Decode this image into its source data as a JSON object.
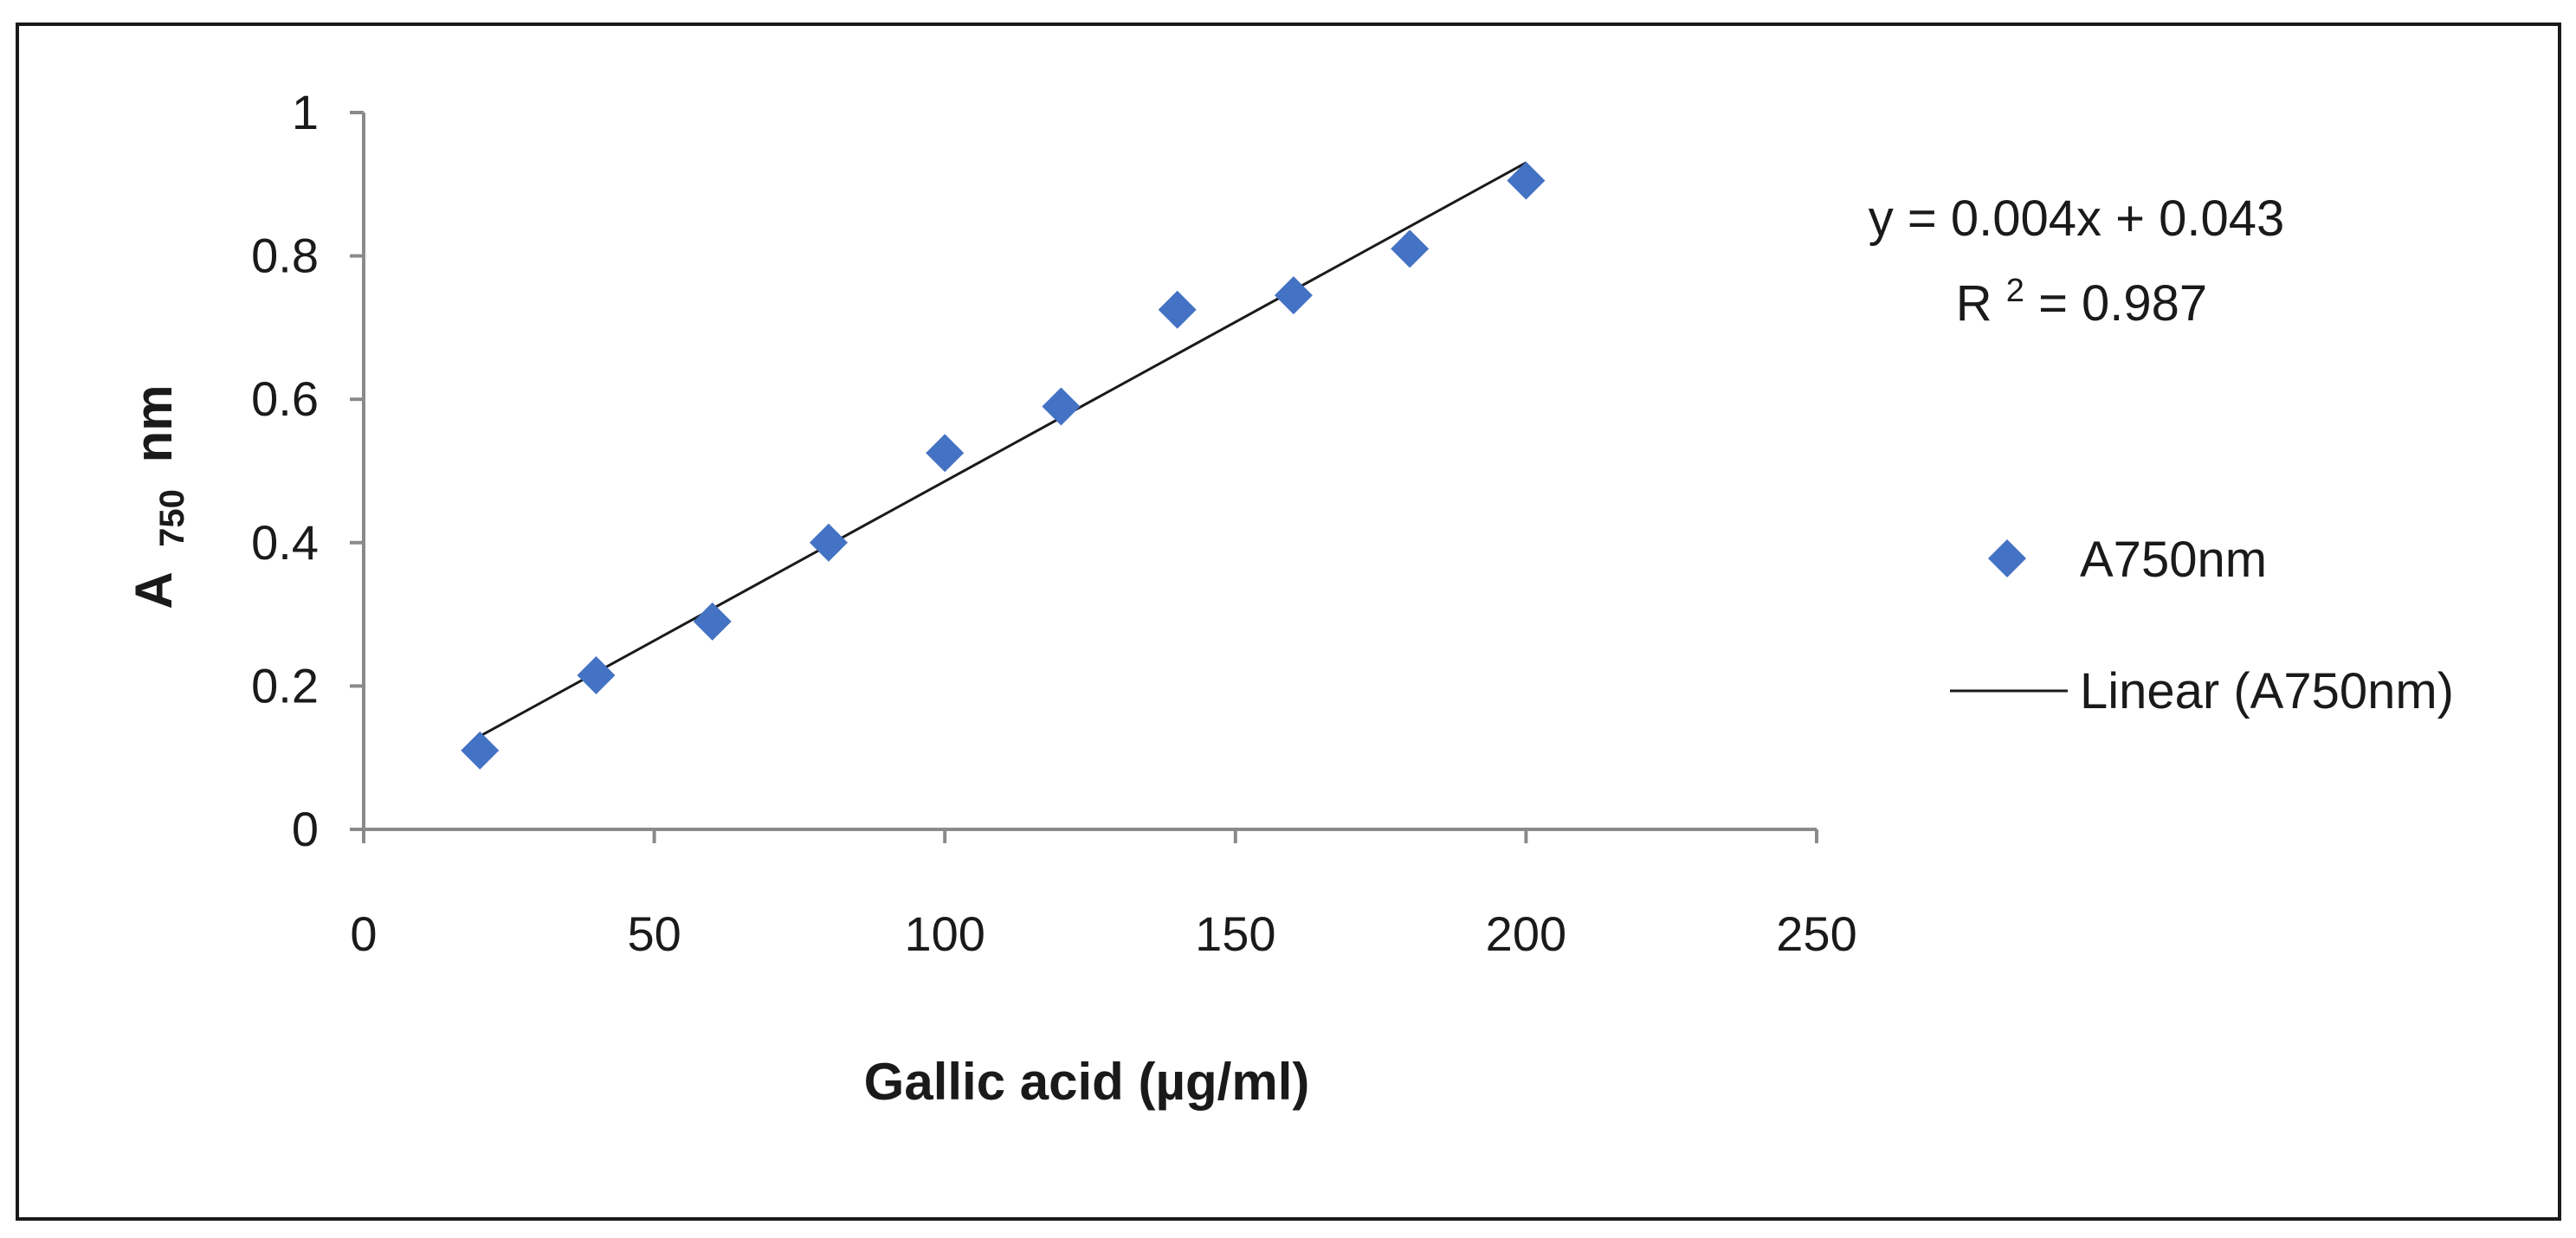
{
  "chart_data": {
    "type": "scatter",
    "xlabel": "Gallic acid (µg/ml)",
    "ylabel": "A 750 nm",
    "ylabel_parts": {
      "main": "A",
      "sub": "750",
      "unit": "nm"
    },
    "xlim": [
      0,
      250
    ],
    "ylim": [
      0,
      1
    ],
    "x_ticks": [
      0,
      50,
      100,
      150,
      200,
      250
    ],
    "y_ticks": [
      0,
      0.2,
      0.4,
      0.6,
      0.8,
      1
    ],
    "x_tick_labels": [
      "0",
      "50",
      "100",
      "150",
      "200",
      "250"
    ],
    "y_tick_labels": [
      "0",
      "0.2",
      "0.4",
      "0.6",
      "0.8",
      "1"
    ],
    "grid": false,
    "legend_position": "right",
    "series": [
      {
        "name": "A750nm",
        "marker": "diamond",
        "color": "#4472C4",
        "x": [
          20,
          40,
          60,
          80,
          100,
          120,
          140,
          160,
          180,
          200
        ],
        "y": [
          0.11,
          0.215,
          0.29,
          0.4,
          0.525,
          0.59,
          0.725,
          0.745,
          0.81,
          0.905
        ]
      }
    ],
    "trendline": {
      "name": "Linear (A750nm)",
      "color": "#1a1a1a",
      "x": [
        20,
        200
      ],
      "y": [
        0.13,
        0.93
      ]
    },
    "annotations": {
      "equation": "y = 0.004x + 0.043",
      "r_squared_prefix": "R",
      "r_squared_sup": "2",
      "r_squared_suffix": " = 0.987"
    }
  }
}
